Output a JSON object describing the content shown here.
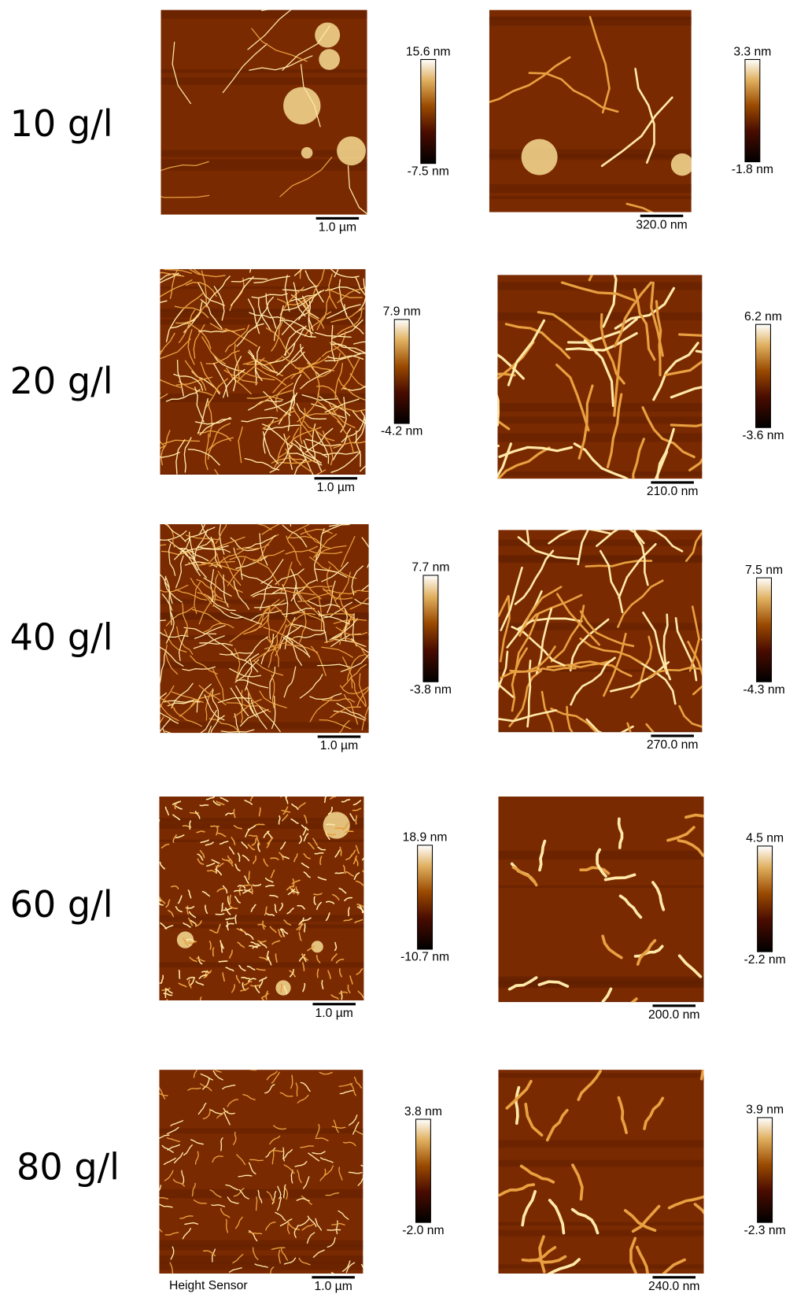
{
  "rows": [
    {
      "label": "10 g/l",
      "panels": [
        {
          "scale_bar": "1.0 µm",
          "colorbar_max": "15.6 nm",
          "colorbar_min": "-7.5 nm"
        },
        {
          "scale_bar": "320.0 nm",
          "colorbar_max": "3.3 nm",
          "colorbar_min": "-1.8 nm"
        }
      ]
    },
    {
      "label": "20 g/l",
      "panels": [
        {
          "scale_bar": "1.0 µm",
          "colorbar_max": "7.9 nm",
          "colorbar_min": "-4.2 nm"
        },
        {
          "scale_bar": "210.0 nm",
          "colorbar_max": "6.2 nm",
          "colorbar_min": "-3.6 nm"
        }
      ]
    },
    {
      "label": "40 g/l",
      "panels": [
        {
          "scale_bar": "1.0 µm",
          "colorbar_max": "7.7 nm",
          "colorbar_min": "-3.8 nm"
        },
        {
          "scale_bar": "270.0 nm",
          "colorbar_max": "7.5 nm",
          "colorbar_min": "-4.3 nm"
        }
      ]
    },
    {
      "label": "60 g/l",
      "panels": [
        {
          "scale_bar": "1.0 µm",
          "colorbar_max": "18.9 nm",
          "colorbar_min": "-10.7 nm"
        },
        {
          "scale_bar": "200.0 nm",
          "colorbar_max": "4.5 nm",
          "colorbar_min": "-2.2 nm"
        }
      ]
    },
    {
      "label": "80 g/l",
      "panels": [
        {
          "scale_bar": "1.0 µm",
          "colorbar_max": "3.8 nm",
          "colorbar_min": "-2.0 nm"
        },
        {
          "scale_bar": "240.0 nm",
          "colorbar_max": "3.9 nm",
          "colorbar_min": "-2.3 nm"
        }
      ]
    }
  ],
  "footer": "Height Sensor"
}
